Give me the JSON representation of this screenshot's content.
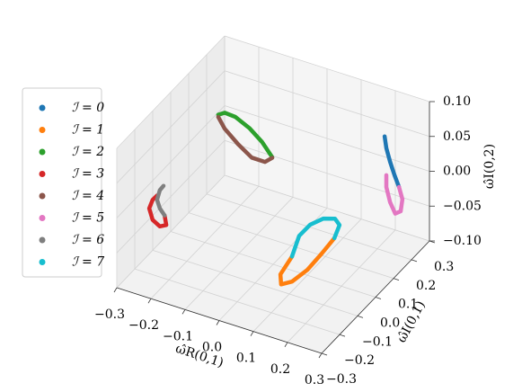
{
  "chart_data": {
    "type": "line3d",
    "x_label": "ω̂R(0,1)",
    "y_label": "ω̂I(0,1)",
    "z_label": "ω̂I(0,2)",
    "xlim": [
      -0.3,
      0.3
    ],
    "ylim": [
      -0.3,
      0.3
    ],
    "zlim": [
      -0.1,
      0.1
    ],
    "xticks": [
      {
        "value": -0.3,
        "label": "−0.3"
      },
      {
        "value": -0.2,
        "label": "−0.2"
      },
      {
        "value": -0.1,
        "label": "−0.1"
      },
      {
        "value": 0,
        "label": "0.0"
      },
      0.1,
      0.2,
      0.3
    ],
    "yticks": [
      {
        "value": -0.3,
        "label": "−0.3"
      },
      {
        "value": -0.2,
        "label": "−0.2"
      },
      {
        "value": -0.1,
        "label": "−0.1"
      },
      {
        "value": 0,
        "label": "0.0"
      },
      0.1,
      0.2,
      0.3
    ],
    "zticks": [
      {
        "value": -0.1,
        "label": "−0.10"
      },
      {
        "value": -0.05,
        "label": "−0.05"
      },
      {
        "value": 0,
        "label": "0.00"
      },
      {
        "value": 0.05,
        "label": "0.05"
      },
      {
        "value": 0.1,
        "label": "0.10"
      }
    ],
    "grid": true,
    "legend": "left",
    "series": [
      {
        "name": "ℐ = 0",
        "color": "#1f77b4",
        "x": [
          0.195,
          0.2,
          0.211,
          0.224,
          0.237
        ],
        "y": [
          0.25,
          0.25,
          0.25,
          0.25,
          0.25
        ],
        "z": [
          0.047,
          0.031,
          0.013,
          -0.004,
          -0.019
        ]
      },
      {
        "name": "ℐ = 1",
        "color": "#ff7f0e",
        "x": [
          0.232,
          0.195,
          0.153,
          0.108,
          0.076,
          0.074,
          0.108
        ],
        "y": [
          -0.1,
          -0.1,
          -0.1,
          -0.1,
          -0.1,
          -0.1,
          -0.1
        ],
        "z": [
          0.001,
          -0.027,
          -0.057,
          -0.081,
          -0.09,
          -0.076,
          -0.045
        ]
      },
      {
        "name": "ℐ = 2",
        "color": "#2ca02c",
        "x": [
          -0.266,
          -0.247,
          -0.216,
          -0.174,
          -0.137,
          -0.108
        ],
        "y": [
          0.2,
          0.2,
          0.2,
          0.2,
          0.2,
          0.2
        ],
        "z": [
          0.019,
          0.025,
          0.024,
          0.014,
          0.0,
          -0.017
        ]
      },
      {
        "name": "ℐ = 3",
        "color": "#d62728",
        "x": [
          -0.239,
          -0.234,
          -0.253,
          -0.274,
          -0.284,
          -0.274,
          -0.261
        ],
        "y": [
          -0.15,
          -0.15,
          -0.15,
          -0.15,
          -0.15,
          -0.15,
          -0.15
        ],
        "z": [
          -0.027,
          -0.04,
          -0.045,
          -0.039,
          -0.024,
          -0.01,
          -0.002
        ]
      },
      {
        "name": "ℐ = 4",
        "color": "#8c564b",
        "x": [
          -0.108,
          -0.129,
          -0.168,
          -0.208,
          -0.247,
          -0.266
        ],
        "y": [
          0.2,
          0.2,
          0.2,
          0.2,
          0.2,
          0.2
        ],
        "z": [
          -0.018,
          -0.027,
          -0.027,
          -0.014,
          0.002,
          0.016
        ]
      },
      {
        "name": "ℐ = 5",
        "color": "#e377c2",
        "x": [
          0.237,
          0.247,
          0.242,
          0.226,
          0.211,
          0.2,
          0.2
        ],
        "y": [
          0.25,
          0.25,
          0.25,
          0.25,
          0.25,
          0.25,
          0.25
        ],
        "z": [
          -0.019,
          -0.035,
          -0.053,
          -0.059,
          -0.045,
          -0.025,
          -0.008
        ]
      },
      {
        "name": "ℐ = 6",
        "color": "#7f7f7f",
        "x": [
          -0.242,
          -0.253,
          -0.261,
          -0.253,
          -0.239
        ],
        "y": [
          -0.15,
          -0.15,
          -0.15,
          -0.15,
          -0.15
        ],
        "z": [
          0.015,
          0.007,
          -0.008,
          -0.019,
          -0.027
        ]
      },
      {
        "name": "ℐ = 7",
        "color": "#17becf",
        "x": [
          0.108,
          0.129,
          0.161,
          0.2,
          0.234,
          0.247,
          0.232
        ],
        "y": [
          -0.1,
          -0.1,
          -0.1,
          -0.1,
          -0.1,
          -0.1,
          -0.1
        ],
        "z": [
          -0.045,
          -0.012,
          0.009,
          0.024,
          0.029,
          0.022,
          0.001
        ]
      }
    ]
  }
}
